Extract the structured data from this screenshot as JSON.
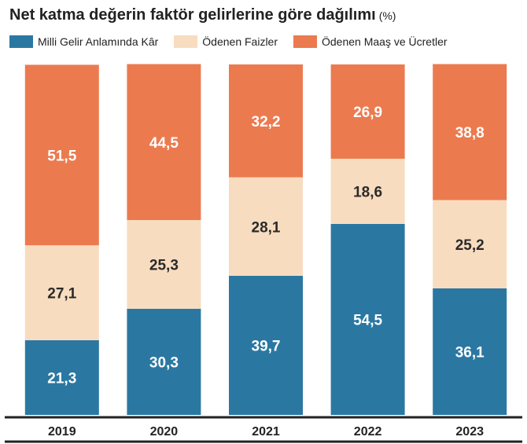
{
  "title": "Net katma değerin faktör gelirlerine göre dağılımı",
  "unit": "(%)",
  "colors": {
    "kar": "#2a78a2",
    "faiz": "#f8dcbf",
    "maas": "#ec7a4f",
    "label_dark": "#2a2a2a",
    "label_light": "#ffffff"
  },
  "chart_data": {
    "type": "bar",
    "stacked": true,
    "categories": [
      "2019",
      "2020",
      "2021",
      "2022",
      "2023"
    ],
    "series": [
      {
        "name": "Milli Gelir Anlamında Kâr",
        "values": [
          21.3,
          30.3,
          39.7,
          54.5,
          36.1
        ],
        "labels": [
          "21,3",
          "30,3",
          "39,7",
          "54,5",
          "36,1"
        ]
      },
      {
        "name": "Ödenen Faizler",
        "values": [
          27.1,
          25.3,
          28.1,
          18.6,
          25.2
        ],
        "labels": [
          "27,1",
          "25,3",
          "28,1",
          "18,6",
          "25,2"
        ]
      },
      {
        "name": "Ödenen Maaş ve Ücretler",
        "values": [
          51.5,
          44.5,
          32.2,
          26.9,
          38.8
        ],
        "labels": [
          "51,5",
          "44,5",
          "32,2",
          "26,9",
          "38,8"
        ]
      }
    ],
    "ylim": [
      0,
      100
    ],
    "grid": false,
    "legend": "top"
  }
}
